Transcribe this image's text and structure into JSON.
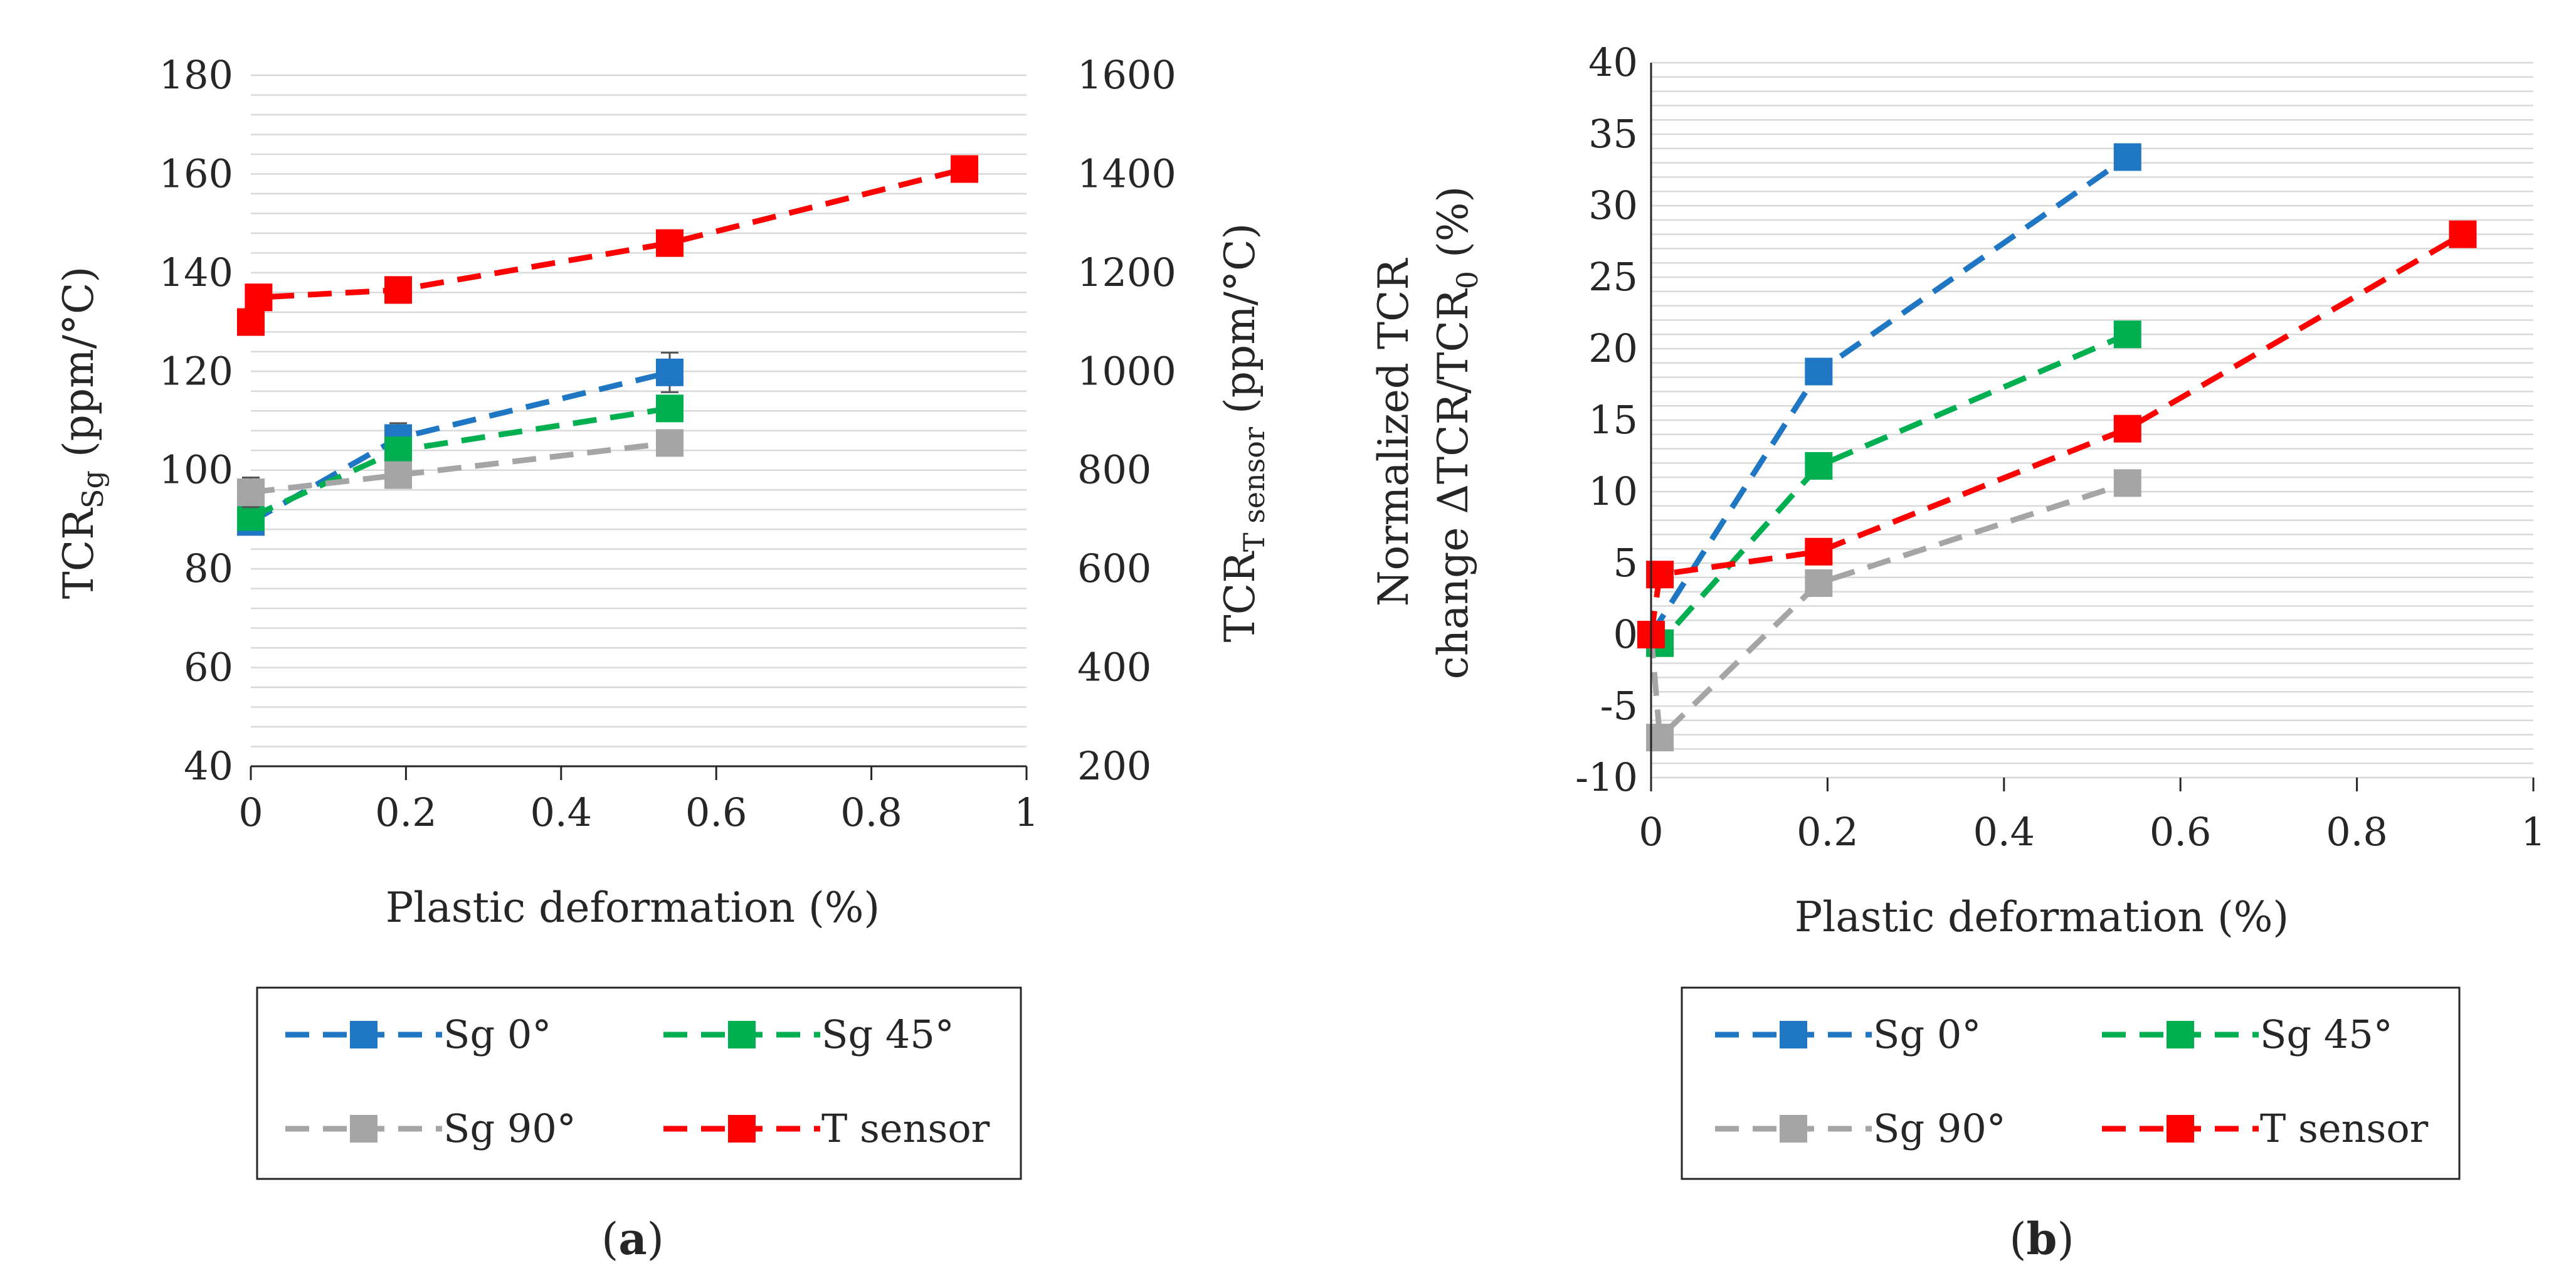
{
  "chart_data": [
    {
      "panel": "a",
      "type": "line",
      "panel_label": "a",
      "xlabel": "Plastic deformation (%)",
      "ylabel_main": "TCR",
      "ylabel_sub": "Sg",
      "ylabel_tail": " (ppm/°C)",
      "y2label_main": "TCR",
      "y2label_sub": "T sensor",
      "y2label_tail": " (ppm/°C)",
      "xlim": [
        0,
        1
      ],
      "ylim": [
        40,
        180
      ],
      "y2lim": [
        200,
        1600
      ],
      "x_ticks": [
        "0",
        "0.2",
        "0.4",
        "0.6",
        "0.8",
        "1"
      ],
      "y_ticks": [
        "40",
        "60",
        "80",
        "100",
        "120",
        "140",
        "160",
        "180"
      ],
      "y2_ticks": [
        "200",
        "400",
        "600",
        "800",
        "1000",
        "1200",
        "1400",
        "1600"
      ],
      "grid": "horizontal minor",
      "legend_position": "bottom",
      "series": [
        {
          "name": "Sg 0°",
          "axis": "left",
          "color": "#1f77c4",
          "x": [
            0,
            0.19,
            0.54
          ],
          "y": [
            89.5,
            106.5,
            119.8
          ],
          "err": [
            1.5,
            3.0,
            4.0
          ]
        },
        {
          "name": "Sg 45°",
          "axis": "left",
          "color": "#00b050",
          "x": [
            0,
            0.19,
            0.54
          ],
          "y": [
            90.5,
            104.0,
            112.5
          ],
          "err": [
            2.0,
            2.5,
            2.0
          ]
        },
        {
          "name": "Sg 90°",
          "axis": "left",
          "color": "#a5a5a5",
          "x": [
            0,
            0.19,
            0.54
          ],
          "y": [
            95.5,
            99.0,
            105.5
          ],
          "err": [
            3.0,
            2.5,
            2.0
          ]
        },
        {
          "name": "T sensor",
          "axis": "right",
          "color": "#ff0000",
          "x": [
            0,
            0.01,
            0.19,
            0.54,
            0.92
          ],
          "y": [
            1100,
            1150,
            1165,
            1260,
            1410
          ],
          "err": [
            0,
            0,
            0,
            0,
            20
          ]
        }
      ]
    },
    {
      "panel": "b",
      "type": "line",
      "panel_label": "b",
      "xlabel": "Plastic deformation (%)",
      "ylabel_line1": "Normalized TCR",
      "ylabel_line2_main": "change ΔTCR/TCR",
      "ylabel_line2_sub": "0",
      "ylabel_line2_tail": " (%)",
      "xlim": [
        0,
        1
      ],
      "ylim": [
        -10,
        40
      ],
      "x_ticks": [
        "0",
        "0.2",
        "0.4",
        "0.6",
        "0.8",
        "1"
      ],
      "y_ticks": [
        "-10",
        "-5",
        "0",
        "5",
        "10",
        "15",
        "20",
        "25",
        "30",
        "35",
        "40"
      ],
      "grid": "horizontal minor",
      "legend_position": "bottom",
      "series": [
        {
          "name": "Sg 0°",
          "color": "#1f77c4",
          "x": [
            0,
            0.19,
            0.54
          ],
          "y": [
            0,
            18.4,
            33.4
          ]
        },
        {
          "name": "Sg 45°",
          "color": "#00b050",
          "x": [
            0,
            0.01,
            0.19,
            0.54
          ],
          "y": [
            0,
            -0.6,
            11.8,
            21.0
          ]
        },
        {
          "name": "Sg 90°",
          "color": "#a5a5a5",
          "x": [
            0,
            0.01,
            0.19,
            0.54
          ],
          "y": [
            0,
            -7.2,
            3.6,
            10.6
          ]
        },
        {
          "name": "T sensor",
          "color": "#ff0000",
          "x": [
            0,
            0.01,
            0.19,
            0.54,
            0.92
          ],
          "y": [
            0,
            4.2,
            5.8,
            14.4,
            28.0
          ]
        }
      ]
    }
  ]
}
